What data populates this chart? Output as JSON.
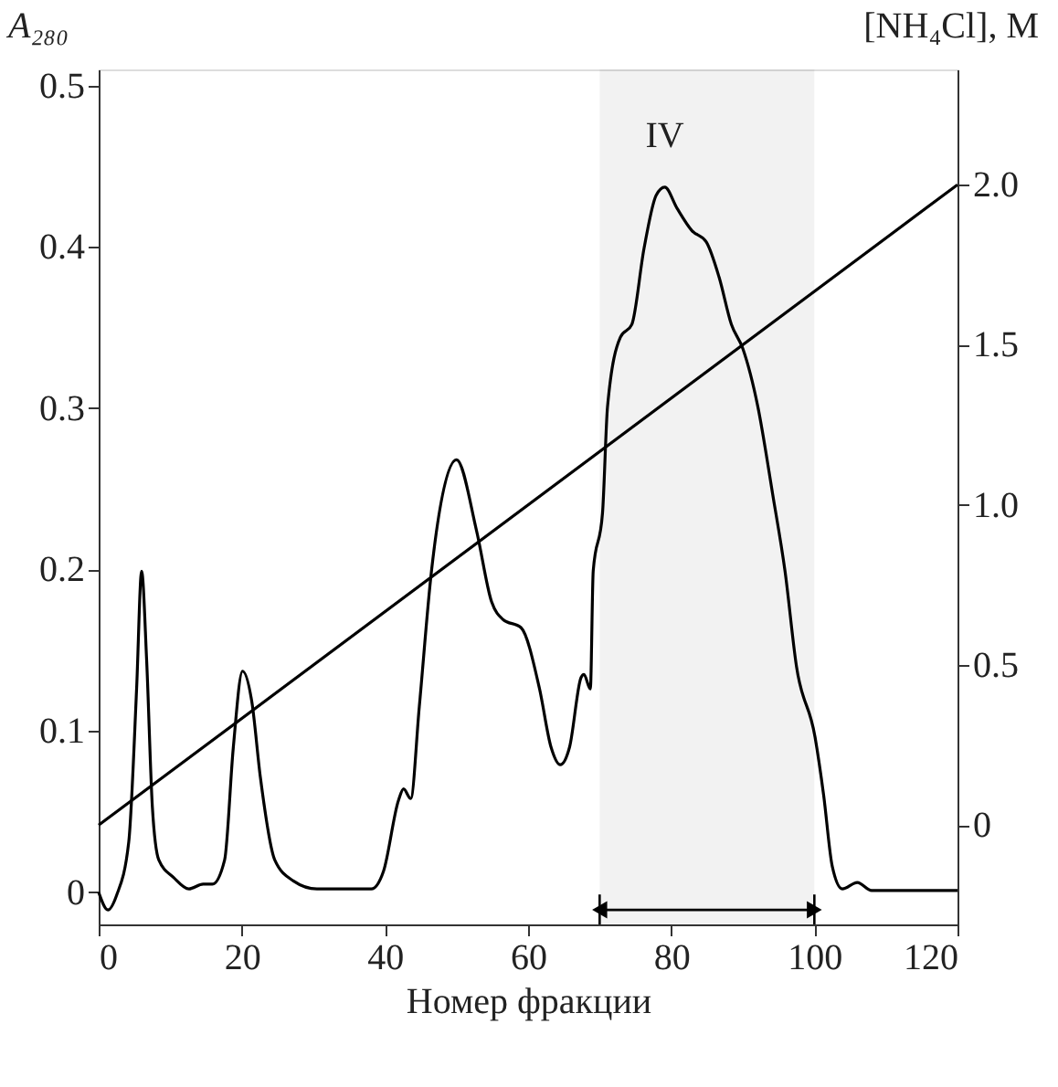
{
  "chart_data": {
    "type": "line",
    "xlabel": "Номер фракции",
    "ylabel": "A₂₈₀",
    "y2label": "[NH₄Cl], M",
    "xlim": [
      0,
      120
    ],
    "xticks": [
      0,
      20,
      40,
      60,
      80,
      100,
      120
    ],
    "ylim": [
      -0.02,
      0.51
    ],
    "yticks": [
      0,
      0.1,
      0.2,
      0.3,
      0.4,
      0.5
    ],
    "y2lim": [
      -0.31,
      2.36
    ],
    "y2ticks": [
      0,
      0.5,
      {
        "value": 1,
        "label": "1.0"
      },
      1.5,
      {
        "value": 2,
        "label": "2.0"
      }
    ],
    "grid": false,
    "line_style": "solid",
    "series": [
      {
        "color": "#000000",
        "x": [
          0,
          1.3,
          2.5,
          4.2,
          5.3,
          6.0,
          6.7,
          7.5,
          8.4,
          10.5,
          12.6,
          14.6,
          15.9,
          17.6,
          18.8,
          20.1,
          21.4,
          22.6,
          24.6,
          27.2,
          30.5,
          38.1,
          39.8,
          41.9,
          42.6,
          43.6,
          44.8,
          46.5,
          50.0,
          52.8,
          54.9,
          56.5,
          59,
          61.6,
          63.2,
          64.5,
          65.8,
          67.4,
          67.8,
          68.7,
          69.1,
          70.4,
          71.1,
          72.9,
          74.5,
          76.2,
          77.9,
          79.1,
          80.8,
          82.9,
          84.9,
          86.7,
          88.4,
          90.0,
          92.1,
          94.2,
          95.9,
          97.5,
          100.1,
          101.3,
          102.5,
          103.9,
          106.0,
          108.0,
          120
        ],
        "values": [
          0.0,
          -0.011,
          -0.002,
          0.031,
          0.126,
          0.199,
          0.144,
          0.053,
          0.02,
          0.009,
          0.002,
          0.005,
          0.005,
          0.02,
          0.089,
          0.137,
          0.118,
          0.071,
          0.02,
          0.007,
          0.002,
          0.002,
          0.013,
          0.057,
          0.064,
          0.058,
          0.115,
          0.199,
          0.268,
          0.224,
          0.18,
          0.169,
          0.164,
          0.126,
          0.09,
          0.079,
          0.09,
          0.133,
          0.135,
          0.126,
          0.199,
          0.235,
          0.301,
          0.344,
          0.352,
          0.399,
          0.432,
          0.437,
          0.424,
          0.41,
          0.403,
          0.381,
          0.352,
          0.337,
          0.301,
          0.246,
          0.199,
          0.14,
          0.096,
          0.06,
          0.016,
          0.002,
          0.006,
          0.001,
          0.001
        ]
      },
      {
        "color": "#000000",
        "axis": "y2",
        "x": [
          0,
          120
        ],
        "values": [
          0.0,
          2.0
        ]
      }
    ],
    "annotations": [
      {
        "text": "IV",
        "x": 79.1,
        "y": 0.437
      }
    ],
    "bands": [
      {
        "axis": "x",
        "from": 70,
        "to": 100,
        "color": "#000000"
      }
    ]
  }
}
